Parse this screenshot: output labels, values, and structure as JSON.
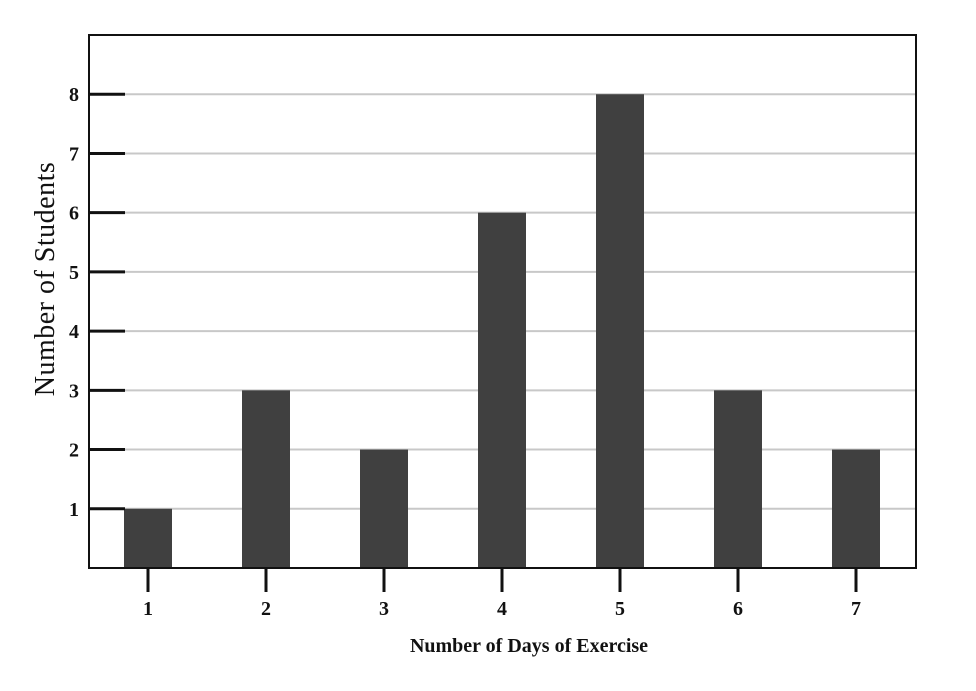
{
  "chart_data": {
    "type": "bar",
    "categories": [
      "1",
      "2",
      "3",
      "4",
      "5",
      "6",
      "7"
    ],
    "values": [
      1,
      3,
      2,
      6,
      8,
      3,
      2
    ],
    "title": "",
    "xlabel": "Number of Days of Exercise",
    "ylabel": "Number of Students",
    "ylim": [
      0,
      9
    ],
    "yticks": [
      1,
      2,
      3,
      4,
      5,
      6,
      7,
      8
    ],
    "grid": true,
    "bar_color": "#404040",
    "grid_color": "#c8c8c8"
  }
}
